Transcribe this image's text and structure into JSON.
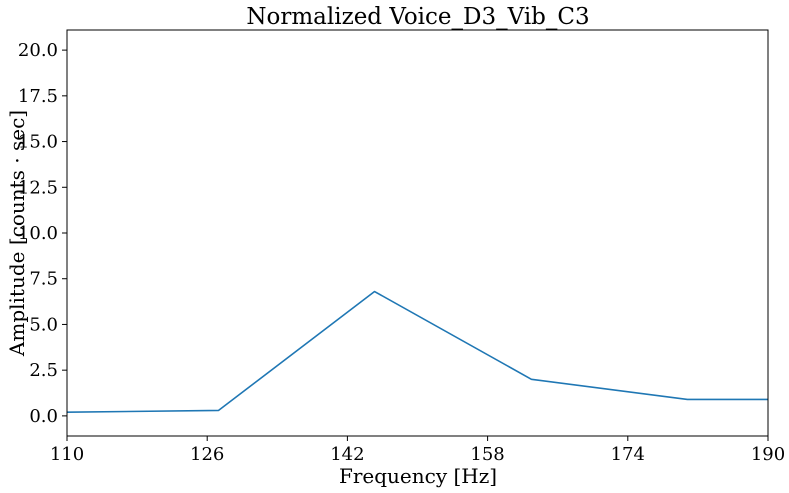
{
  "chart_data": {
    "type": "line",
    "title": "Normalized Voice_D3_Vib_C3",
    "xlabel": "Frequency [Hz]",
    "ylabel": "Amplitude [counts · sec]",
    "xlim": [
      110,
      190
    ],
    "ylim": [
      -1.1,
      21.1
    ],
    "xticks": [
      110,
      126,
      142,
      158,
      174,
      190
    ],
    "yticks": [
      0.0,
      2.5,
      5.0,
      7.5,
      10.0,
      12.5,
      15.0,
      17.5,
      20.0
    ],
    "xtick_labels": [
      "110",
      "126",
      "142",
      "158",
      "174",
      "190"
    ],
    "ytick_labels": [
      "0.0",
      "2.5",
      "5.0",
      "7.5",
      "10.0",
      "12.5",
      "15.0",
      "17.5",
      "20.0"
    ],
    "grid": false,
    "series": [
      {
        "color": "#1f77b4",
        "x": [
          110,
          127.3,
          145.1,
          163.0,
          180.8,
          190
        ],
        "y": [
          0.2,
          0.3,
          6.8,
          2.0,
          0.9,
          0.9
        ]
      }
    ]
  }
}
